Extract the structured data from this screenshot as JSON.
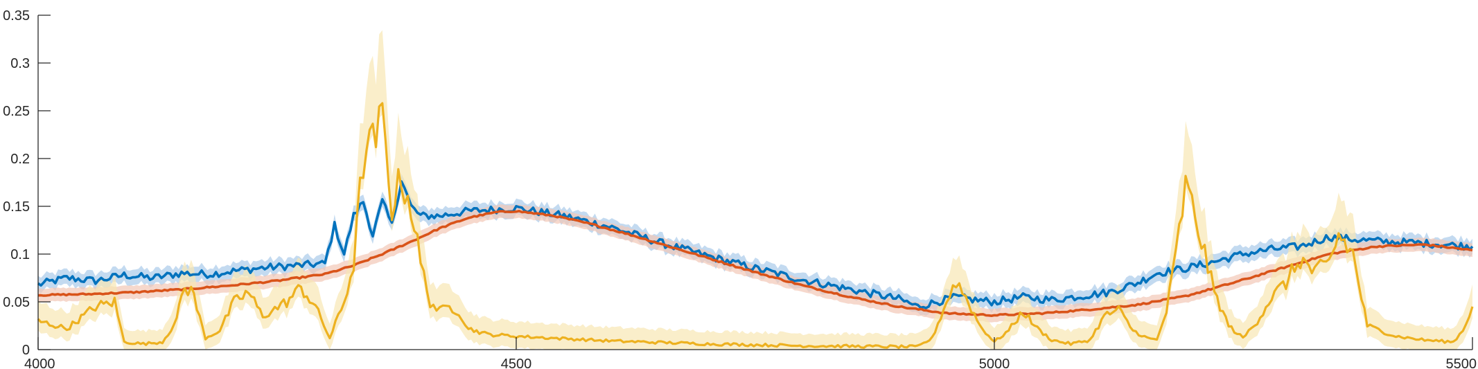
{
  "chart_data": {
    "type": "line",
    "title": "",
    "xlabel": "",
    "ylabel": "",
    "xlim": [
      4000,
      5500
    ],
    "ylim": [
      0,
      0.35
    ],
    "grid": false,
    "legend": "none",
    "x_ticks": [
      4000,
      4500,
      5000,
      5500
    ],
    "x_tick_labels": [
      "4000",
      "4500",
      "5000",
      "5500"
    ],
    "y_ticks": [
      0,
      0.05,
      0.1,
      0.15,
      0.2,
      0.25,
      0.3,
      0.35
    ],
    "y_tick_labels": [
      "0",
      "0.05",
      "0.1",
      "0.15",
      "0.2",
      "0.25",
      "0.3",
      "0.35"
    ],
    "series": [
      {
        "color": "#0072BD",
        "band_color": "#A9CBEA",
        "band_half_width": 0.008,
        "x": [
          4000,
          4030,
          4060,
          4090,
          4120,
          4150,
          4180,
          4210,
          4240,
          4270,
          4300,
          4310,
          4320,
          4330,
          4340,
          4350,
          4360,
          4370,
          4380,
          4390,
          4400,
          4420,
          4450,
          4500,
          4550,
          4600,
          4650,
          4700,
          4750,
          4800,
          4850,
          4900,
          4920,
          4940,
          4960,
          4980,
          5000,
          5030,
          5060,
          5090,
          5120,
          5150,
          5170,
          5200,
          5230,
          5260,
          5290,
          5320,
          5350,
          5380,
          5410,
          5440,
          5470,
          5500
        ],
        "y": [
          0.068,
          0.075,
          0.072,
          0.078,
          0.075,
          0.08,
          0.079,
          0.083,
          0.086,
          0.088,
          0.09,
          0.13,
          0.1,
          0.14,
          0.155,
          0.12,
          0.155,
          0.13,
          0.178,
          0.15,
          0.14,
          0.14,
          0.145,
          0.148,
          0.14,
          0.128,
          0.112,
          0.098,
          0.085,
          0.073,
          0.063,
          0.053,
          0.045,
          0.05,
          0.055,
          0.052,
          0.05,
          0.055,
          0.052,
          0.056,
          0.06,
          0.07,
          0.08,
          0.085,
          0.092,
          0.1,
          0.105,
          0.108,
          0.118,
          0.115,
          0.113,
          0.112,
          0.11,
          0.108
        ]
      },
      {
        "color": "#D95319",
        "band_color": "#F2C7B6",
        "band_half_width": 0.007,
        "x": [
          4000,
          4050,
          4100,
          4150,
          4200,
          4250,
          4300,
          4330,
          4360,
          4390,
          4420,
          4450,
          4480,
          4500,
          4540,
          4580,
          4620,
          4660,
          4700,
          4750,
          4800,
          4850,
          4900,
          4950,
          5000,
          5050,
          5100,
          5150,
          5200,
          5250,
          5300,
          5350,
          5400,
          5450,
          5500
        ],
        "y": [
          0.057,
          0.058,
          0.06,
          0.063,
          0.067,
          0.072,
          0.079,
          0.088,
          0.1,
          0.113,
          0.127,
          0.138,
          0.144,
          0.145,
          0.14,
          0.131,
          0.12,
          0.108,
          0.096,
          0.081,
          0.067,
          0.055,
          0.045,
          0.038,
          0.036,
          0.038,
          0.042,
          0.047,
          0.056,
          0.07,
          0.085,
          0.1,
          0.108,
          0.11,
          0.104
        ]
      },
      {
        "color": "#EDB120",
        "band_color": "#F8E7B3",
        "band_half_width": 0.012,
        "x": [
          4000,
          4030,
          4060,
          4080,
          4090,
          4110,
          4130,
          4145,
          4150,
          4160,
          4175,
          4190,
          4205,
          4220,
          4235,
          4260,
          4275,
          4290,
          4305,
          4320,
          4330,
          4340,
          4350,
          4360,
          4370,
          4380,
          4390,
          4400,
          4410,
          4420,
          4430,
          4440,
          4450,
          4470,
          4500,
          4600,
          4700,
          4800,
          4900,
          4920,
          4935,
          4950,
          4960,
          4970,
          4985,
          5000,
          5015,
          5030,
          5045,
          5060,
          5080,
          5100,
          5115,
          5130,
          5145,
          5160,
          5170,
          5180,
          5190,
          5200,
          5210,
          5220,
          5230,
          5245,
          5260,
          5275,
          5290,
          5305,
          5320,
          5335,
          5350,
          5360,
          5375,
          5390,
          5420,
          5450,
          5480,
          5490,
          5500
        ],
        "y": [
          0.03,
          0.022,
          0.045,
          0.05,
          0.008,
          0.006,
          0.008,
          0.03,
          0.06,
          0.065,
          0.012,
          0.02,
          0.05,
          0.06,
          0.035,
          0.05,
          0.065,
          0.045,
          0.012,
          0.05,
          0.09,
          0.2,
          0.215,
          0.24,
          0.15,
          0.18,
          0.15,
          0.09,
          0.05,
          0.04,
          0.045,
          0.04,
          0.022,
          0.016,
          0.014,
          0.009,
          0.006,
          0.004,
          0.003,
          0.003,
          0.012,
          0.05,
          0.072,
          0.055,
          0.025,
          0.008,
          0.02,
          0.04,
          0.022,
          0.01,
          0.006,
          0.01,
          0.035,
          0.042,
          0.02,
          0.012,
          0.01,
          0.04,
          0.1,
          0.17,
          0.14,
          0.1,
          0.06,
          0.025,
          0.012,
          0.03,
          0.055,
          0.07,
          0.095,
          0.08,
          0.09,
          0.12,
          0.1,
          0.025,
          0.014,
          0.01,
          0.008,
          0.02,
          0.045
        ]
      }
    ]
  }
}
